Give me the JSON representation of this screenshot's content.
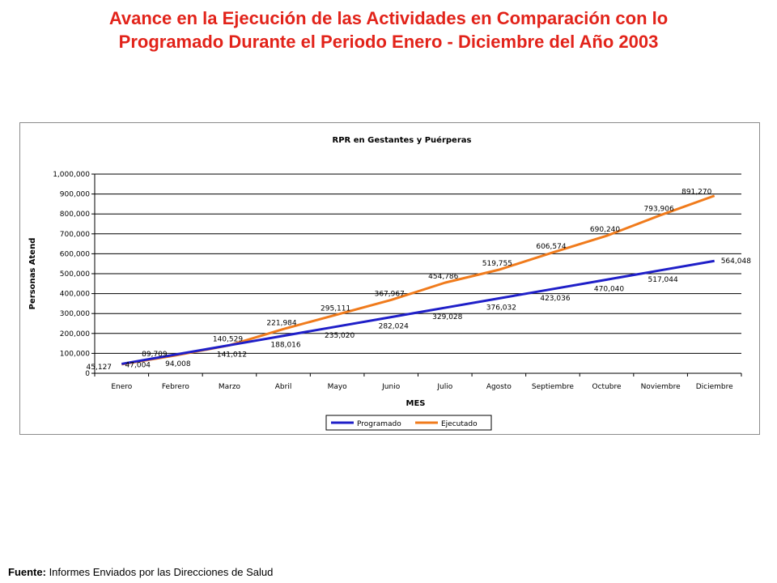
{
  "header": {
    "title_line1": "Avance en la Ejecución de las Actividades en Comparación con lo",
    "title_line2": "Programado Durante el Periodo Enero - Diciembre del Año 2003"
  },
  "footer": {
    "source_label": "Fuente:",
    "source_text": " Informes Enviados por las Direcciones de Salud"
  },
  "chart_data": {
    "type": "line",
    "title": "RPR en Gestantes y Puérperas",
    "xlabel": "MES",
    "ylabel": "Personas Atend",
    "ylim": [
      0,
      1000000
    ],
    "yticks": [
      0,
      100000,
      200000,
      300000,
      400000,
      500000,
      600000,
      700000,
      800000,
      900000,
      1000000
    ],
    "ytick_labels": [
      "0",
      "100,000",
      "200,000",
      "300,000",
      "400,000",
      "500,000",
      "600,000",
      "700,000",
      "800,000",
      "900,000",
      "1,000,000"
    ],
    "grid": true,
    "legend_position": "bottom",
    "categories": [
      "Enero",
      "Febrero",
      "Marzo",
      "Abril",
      "Mayo",
      "Junio",
      "Julio",
      "Agosto",
      "Septiembre",
      "Octubre",
      "Noviembre",
      "Diciembre"
    ],
    "series": [
      {
        "name": "Programado",
        "color": "#1f1fc8",
        "values": [
          47004,
          94008,
          141012,
          188016,
          235020,
          282024,
          329028,
          376032,
          423036,
          470040,
          517044,
          564048
        ],
        "labels": [
          "47,004",
          "94,008",
          "141,012",
          "188,016",
          "235,020",
          "282,024",
          "329,028",
          "376,032",
          "423,036",
          "470,040",
          "517,044",
          "564,048"
        ]
      },
      {
        "name": "Ejecutado",
        "color": "#f07b1c",
        "values": [
          45127,
          89709,
          140529,
          221984,
          295111,
          367967,
          454786,
          519755,
          606574,
          690240,
          793906,
          891270
        ],
        "labels": [
          "45,127",
          "89,709",
          "140,529",
          "221,984",
          "295,111",
          "367,967",
          "454,786",
          "519,755",
          "606,574",
          "690,240",
          "793,906",
          "891,270"
        ]
      }
    ]
  }
}
